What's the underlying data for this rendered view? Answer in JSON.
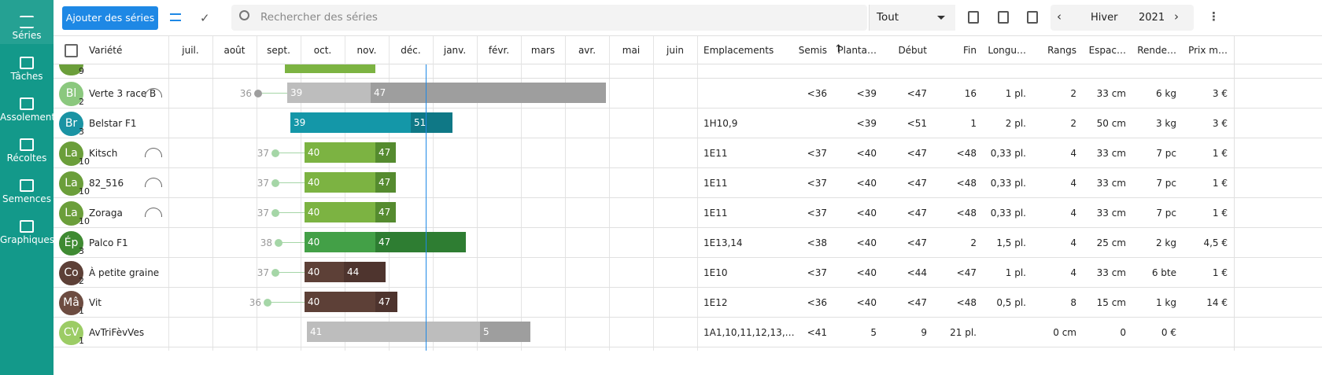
{
  "nav": [
    "Séries",
    "Tâches",
    "Assolement",
    "Récoltes",
    "Semences",
    "Graphiques"
  ],
  "toolbar": {
    "add_button": "Ajouter des séries",
    "search_placeholder": "Rechercher des séries",
    "filter": "Tout",
    "season": "Hiver",
    "year": "2021"
  },
  "table": {
    "variety_header": "Variété",
    "months": [
      "juil.",
      "août",
      "sept.",
      "oct.",
      "nov.",
      "déc.",
      "janv.",
      "févr.",
      "mars",
      "avr.",
      "mai",
      "juin"
    ],
    "location_header": "Emplacements",
    "columns": [
      "Semis",
      "Planta…",
      "Début",
      "Fin",
      "Longu…",
      "Rangs",
      "Espac…",
      "Rende…",
      "Prix m…"
    ],
    "partial_row_count": "9",
    "rows": [
      {
        "avatar": "Bl",
        "count": "2",
        "name": "Verte 3 race B",
        "sow": "36",
        "start": "39",
        "end": "47",
        "location": null,
        "cells": [
          "<36",
          "<39",
          "<47",
          "16",
          "1 pl.",
          "2",
          "33 cm",
          "6 kg",
          "3 €"
        ]
      },
      {
        "avatar": "Br",
        "count": "3",
        "name": "Belstar F1",
        "sow": null,
        "start": "39",
        "end": "51",
        "location": "1H10,9",
        "cells": [
          null,
          "<39",
          "<51",
          "1",
          "2 pl.",
          "2",
          "50 cm",
          "3 kg",
          "3 €"
        ]
      },
      {
        "avatar": "La",
        "count": "10",
        "name": "Kitsch",
        "sow": "37",
        "start": "40",
        "end": "47",
        "location": "1E11",
        "cells": [
          "<37",
          "<40",
          "<47",
          "<48",
          "0,33 pl.",
          "4",
          "33 cm",
          "7 pc",
          "1 €"
        ]
      },
      {
        "avatar": "La",
        "count": "10",
        "name": "82_516",
        "sow": "37",
        "start": "40",
        "end": "47",
        "location": "1E11",
        "cells": [
          "<37",
          "<40",
          "<47",
          "<48",
          "0,33 pl.",
          "4",
          "33 cm",
          "7 pc",
          "1 €"
        ]
      },
      {
        "avatar": "La",
        "count": "10",
        "name": "Zoraga",
        "sow": "37",
        "start": "40",
        "end": "47",
        "location": "1E11",
        "cells": [
          "<37",
          "<40",
          "<47",
          "<48",
          "0,33 pl.",
          "4",
          "33 cm",
          "7 pc",
          "1 €"
        ]
      },
      {
        "avatar": "Ép",
        "count": "3",
        "name": "Palco F1",
        "sow": "38",
        "start": "40",
        "end": "47",
        "location": "1E13,14",
        "cells": [
          "<38",
          "<40",
          "<47",
          "2",
          "1,5 pl.",
          "4",
          "25 cm",
          "2 kg",
          "4,5 €"
        ]
      },
      {
        "avatar": "Co",
        "count": "2",
        "name": "À petite graine",
        "sow": "37",
        "start": "40",
        "end": "44",
        "location": "1E10",
        "cells": [
          "<37",
          "<40",
          "<44",
          "<47",
          "1 pl.",
          "4",
          "33 cm",
          "6 bte",
          "1 €"
        ]
      },
      {
        "avatar": "Mâ",
        "count": "1",
        "name": "Vit",
        "sow": "36",
        "start": "40",
        "end": "47",
        "location": "1E12",
        "cells": [
          "<36",
          "<40",
          "<47",
          "<48",
          "0,5 pl.",
          "8",
          "15 cm",
          "1 kg",
          "14 €"
        ]
      },
      {
        "avatar": "CV",
        "count": "1",
        "name": "AvTriFèvVes",
        "sow": null,
        "start": "41",
        "end": "5",
        "location": "1A1,10,11,12,13,…",
        "cells": [
          "<41",
          "5",
          "9",
          "21 pl.",
          null,
          "0 cm",
          "0",
          "0 €",
          null
        ]
      }
    ]
  }
}
